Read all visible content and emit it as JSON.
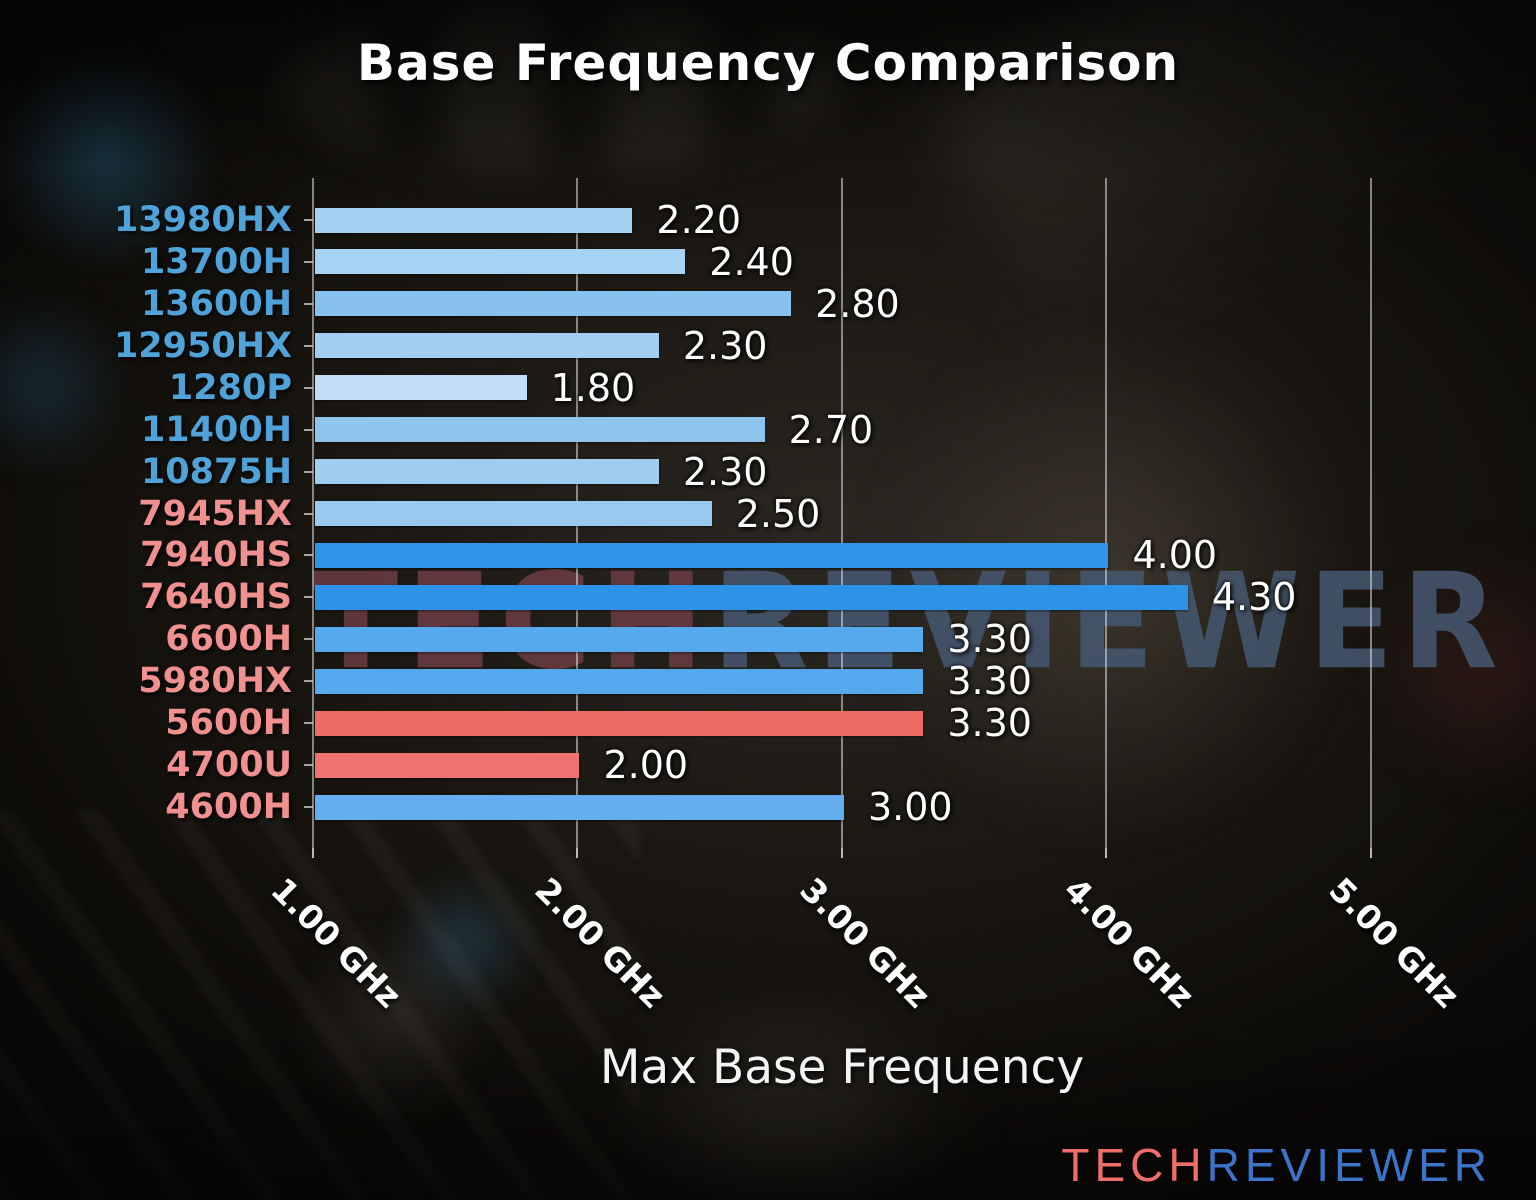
{
  "page": {
    "title": "Base Frequency Comparison",
    "xlabel": "Max Base Frequency",
    "watermark_tech": "TECH",
    "watermark_reviewer": "REVIEWER",
    "logo_tech": "TECH",
    "logo_reviewer": "REVIEWER"
  },
  "colors": {
    "intel_label": "#4fa3d9",
    "amd_label": "#f0908f",
    "bright_blue_bar": "#2e93e8",
    "red_bar": "#ee6f68",
    "gridline": "rgba(225,225,225,0.55)",
    "logo_tech": "#ed6d68",
    "logo_reviewer": "#3b74c9",
    "watermark_tech": "#6b3d43",
    "watermark_reviewer": "#475871"
  },
  "chart_data": {
    "type": "bar",
    "orientation": "horizontal",
    "title": "Base Frequency Comparison",
    "xlabel": "Max Base Frequency",
    "x_unit": "GHz",
    "xlim": [
      1.0,
      5.45
    ],
    "grid": "vertical gridlines at each x tick",
    "legend": "none",
    "x_ticks": [
      {
        "value": 1.0,
        "label": "1.00 GHz"
      },
      {
        "value": 2.0,
        "label": "2.00 GHz"
      },
      {
        "value": 3.0,
        "label": "3.00 GHz"
      },
      {
        "value": 4.0,
        "label": "4.00 GHz"
      },
      {
        "value": 5.0,
        "label": "5.00 GHz"
      }
    ],
    "bars": [
      {
        "label": "13980HX",
        "value": 2.2,
        "value_label": "2.20",
        "bar_color": "#a4d0f1",
        "label_color": "#4fa3d9"
      },
      {
        "label": "13700H",
        "value": 2.4,
        "value_label": "2.40",
        "bar_color": "#a6d2f3",
        "label_color": "#4fa3d9"
      },
      {
        "label": "13600H",
        "value": 2.8,
        "value_label": "2.80",
        "bar_color": "#87c2ee",
        "label_color": "#4fa3d9"
      },
      {
        "label": "12950HX",
        "value": 2.3,
        "value_label": "2.30",
        "bar_color": "#a1cef1",
        "label_color": "#4fa3d9"
      },
      {
        "label": "1280P",
        "value": 1.8,
        "value_label": "1.80",
        "bar_color": "#c1ddf5",
        "label_color": "#4fa3d9"
      },
      {
        "label": "11400H",
        "value": 2.7,
        "value_label": "2.70",
        "bar_color": "#8dc5ee",
        "label_color": "#4fa3d9"
      },
      {
        "label": "10875H",
        "value": 2.3,
        "value_label": "2.30",
        "bar_color": "#9fcdf0",
        "label_color": "#4fa3d9"
      },
      {
        "label": "7945HX",
        "value": 2.5,
        "value_label": "2.50",
        "bar_color": "#98caef",
        "label_color": "#f0908f"
      },
      {
        "label": "7940HS",
        "value": 4.0,
        "value_label": "4.00",
        "bar_color": "#2f94e9",
        "label_color": "#f0908f"
      },
      {
        "label": "7640HS",
        "value": 4.3,
        "value_label": "4.30",
        "bar_color": "#2d93e9",
        "label_color": "#f0908f"
      },
      {
        "label": "6600H",
        "value": 3.3,
        "value_label": "3.30",
        "bar_color": "#57a9ee",
        "label_color": "#f0908f"
      },
      {
        "label": "5980HX",
        "value": 3.3,
        "value_label": "3.30",
        "bar_color": "#56a8ee",
        "label_color": "#f0908f"
      },
      {
        "label": "5600H",
        "value": 3.3,
        "value_label": "3.30",
        "bar_color": "#ee6a64",
        "label_color": "#f0908f"
      },
      {
        "label": "4700U",
        "value": 2.0,
        "value_label": "2.00",
        "bar_color": "#ef736e",
        "label_color": "#f0908f"
      },
      {
        "label": "4600H",
        "value": 3.0,
        "value_label": "3.00",
        "bar_color": "#64aeef",
        "label_color": "#f0908f"
      }
    ]
  }
}
